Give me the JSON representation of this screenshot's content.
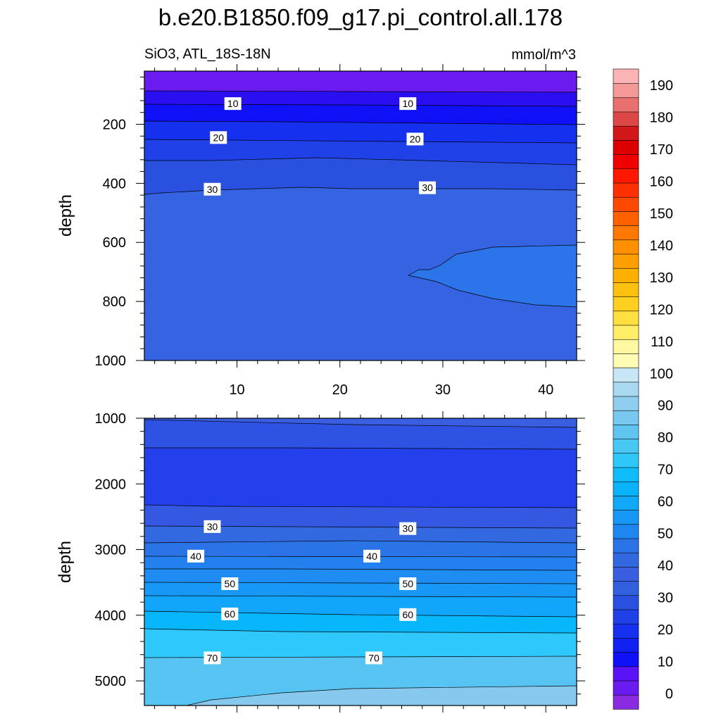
{
  "title": "b.e20.B1850.f09_g17.pi_control.all.178",
  "subtitle_left": "SiO3, ATL_18S-18N",
  "subtitle_right": "mmol/m^3",
  "chart_data": [
    {
      "type": "contour",
      "panel": "upper",
      "ylabel": "depth",
      "xlim": [
        1,
        43
      ],
      "ylim": [
        1000,
        20
      ],
      "y_inverted": true,
      "x_ticks": [
        "10",
        "20",
        "30",
        "40"
      ],
      "y_ticks": [
        "200",
        "400",
        "600",
        "800",
        "1000"
      ],
      "contour_labels": [
        {
          "text": "10",
          "x": 9.6,
          "y": 130
        },
        {
          "text": "10",
          "x": 26.6,
          "y": 130
        },
        {
          "text": "20",
          "x": 8.2,
          "y": 245
        },
        {
          "text": "20",
          "x": 27.3,
          "y": 250
        },
        {
          "text": "30",
          "x": 7.6,
          "y": 420
        },
        {
          "text": "30",
          "x": 28.5,
          "y": 415
        }
      ]
    },
    {
      "type": "contour",
      "panel": "lower",
      "ylabel": "depth",
      "xlim": [
        1,
        43
      ],
      "ylim": [
        5375,
        1000
      ],
      "y_inverted": true,
      "y_ticks": [
        "1000",
        "2000",
        "3000",
        "4000",
        "5000"
      ],
      "contour_labels": [
        {
          "text": "30",
          "x": 7.6,
          "y": 2650
        },
        {
          "text": "30",
          "x": 26.6,
          "y": 2680
        },
        {
          "text": "40",
          "x": 6.0,
          "y": 3100
        },
        {
          "text": "40",
          "x": 23.1,
          "y": 3100
        },
        {
          "text": "50",
          "x": 9.3,
          "y": 3520
        },
        {
          "text": "50",
          "x": 26.6,
          "y": 3520
        },
        {
          "text": "60",
          "x": 9.3,
          "y": 3980
        },
        {
          "text": "60",
          "x": 26.6,
          "y": 3990
        },
        {
          "text": "70",
          "x": 7.6,
          "y": 4650
        },
        {
          "text": "70",
          "x": 23.3,
          "y": 4650
        }
      ]
    }
  ],
  "colorbar": {
    "labels": [
      "0",
      "10",
      "20",
      "30",
      "40",
      "50",
      "60",
      "70",
      "80",
      "90",
      "100",
      "110",
      "120",
      "130",
      "140",
      "150",
      "160",
      "170",
      "180",
      "190"
    ],
    "colors": [
      "#8a2be2",
      "#6a1cf0",
      "#5a12f6",
      "#1010f8",
      "#1020f0",
      "#1530ee",
      "#2040e8",
      "#2a50e0",
      "#3060dd",
      "#3a5ee0",
      "#3268e0",
      "#2b74e8",
      "#1e86f0",
      "#1898f6",
      "#12a8fa",
      "#0ab4fc",
      "#10bcfc",
      "#2ec8fc",
      "#48c6f4",
      "#60c4f0",
      "#78c8f0",
      "#90cef0",
      "#a8d8f0",
      "#c8e6f6",
      "#fffcb4",
      "#fff8a0",
      "#ffee66",
      "#ffe040",
      "#ffd020",
      "#ffc010",
      "#ffb000",
      "#ffa000",
      "#ff9000",
      "#ff7800",
      "#ff6000",
      "#ff4800",
      "#ff3000",
      "#ff1800",
      "#f00000",
      "#dc0000",
      "#d21818",
      "#dc4848",
      "#ea7070",
      "#f49898",
      "#fcb4b4"
    ]
  }
}
